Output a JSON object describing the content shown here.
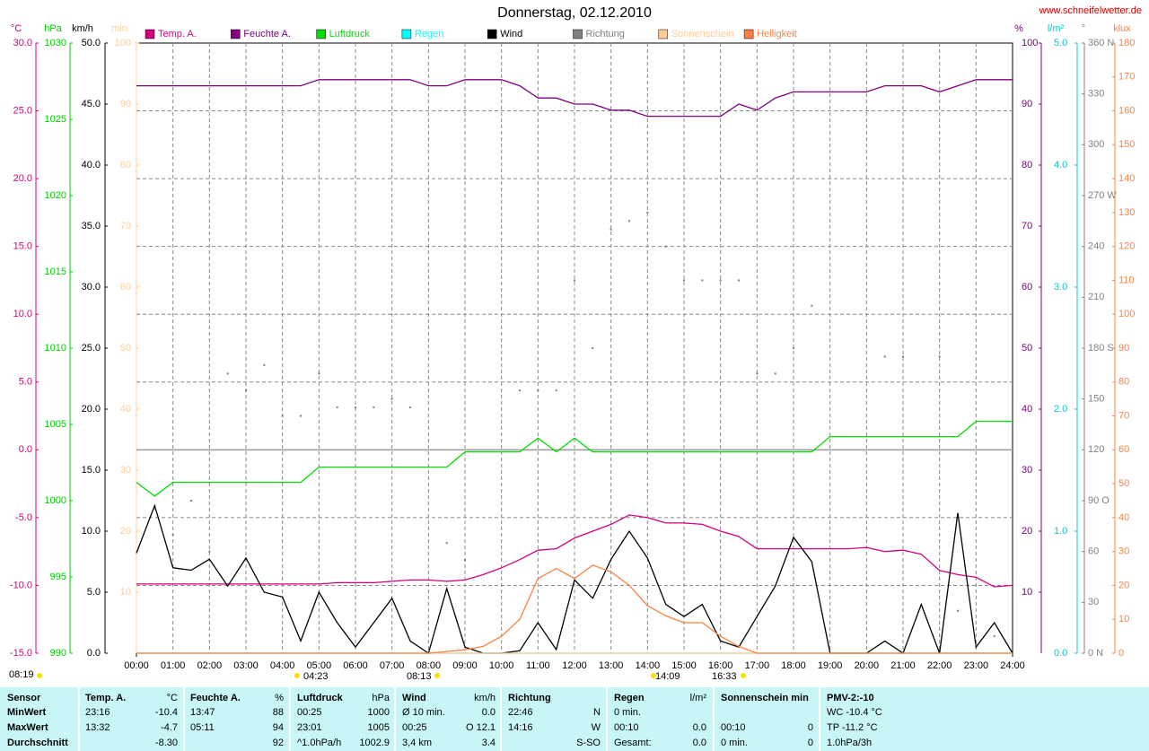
{
  "chart_data": {
    "type": "line",
    "title": "Donnerstag, 02.12.2010",
    "source": "www.schneifelwetter.de",
    "x": [
      0,
      0.5,
      1,
      1.5,
      2,
      2.5,
      3,
      3.5,
      4,
      4.5,
      5,
      5.5,
      6,
      6.5,
      7,
      7.5,
      8,
      8.5,
      9,
      9.5,
      10,
      10.5,
      11,
      11.5,
      12,
      12.5,
      13,
      13.5,
      14,
      14.5,
      15,
      15.5,
      16,
      16.5,
      17,
      17.5,
      18,
      18.5,
      19,
      19.5,
      20,
      20.5,
      21,
      21.5,
      22,
      22.5,
      23,
      23.5,
      24
    ],
    "xlim": [
      0,
      24
    ],
    "xticks": [
      {
        "value": 0,
        "label": "00:00"
      },
      {
        "value": 1,
        "label": "01:00"
      },
      {
        "value": 2,
        "label": "02:00"
      },
      {
        "value": 3,
        "label": "03:00"
      },
      {
        "value": 4,
        "label": "04:00"
      },
      {
        "value": 5,
        "label": "05:00"
      },
      {
        "value": 6,
        "label": "06:00"
      },
      {
        "value": 7,
        "label": "07:00"
      },
      {
        "value": 8,
        "label": "08:00"
      },
      {
        "value": 9,
        "label": "09:00"
      },
      {
        "value": 10,
        "label": "10:00"
      },
      {
        "value": 11,
        "label": "11:00"
      },
      {
        "value": 12,
        "label": "12:00"
      },
      {
        "value": 13,
        "label": "13:00"
      },
      {
        "value": 14,
        "label": "14:00"
      },
      {
        "value": 15,
        "label": "15:00"
      },
      {
        "value": 16,
        "label": "16:00"
      },
      {
        "value": 17,
        "label": "17:00"
      },
      {
        "value": 18,
        "label": "18:00"
      },
      {
        "value": 19,
        "label": "19:00"
      },
      {
        "value": 20,
        "label": "20:00"
      },
      {
        "value": 21,
        "label": "21:00"
      },
      {
        "value": 22,
        "label": "22:00"
      },
      {
        "value": 23,
        "label": "23:00"
      },
      {
        "value": 24,
        "label": "24:00"
      }
    ],
    "grid": true,
    "axes": [
      {
        "title": "°C",
        "color": "#d4007f",
        "ylim": [
          -15,
          30
        ],
        "yticks": [
          {
            "value": -15,
            "label": "-15.0"
          },
          {
            "value": -10,
            "label": "-10.0"
          },
          {
            "value": -5,
            "label": "-5.0"
          },
          {
            "value": 0,
            "label": "0.0"
          },
          {
            "value": 5,
            "label": "5.0"
          },
          {
            "value": 10,
            "label": "10.0"
          },
          {
            "value": 15,
            "label": "15.0"
          },
          {
            "value": 20,
            "label": "20.0"
          },
          {
            "value": 25,
            "label": "25.0"
          },
          {
            "value": 30,
            "label": "30.0"
          }
        ]
      },
      {
        "title": "hPa",
        "color": "#00cc00",
        "ylim": [
          990,
          1030
        ],
        "yticks": [
          990,
          995,
          1000,
          1005,
          1010,
          1015,
          1020,
          1025,
          1030
        ]
      },
      {
        "title": "km/h",
        "color": "#000000",
        "ylim": [
          0,
          50
        ],
        "yticks": [
          {
            "value": 0,
            "label": "0.0"
          },
          {
            "value": 5,
            "label": "5.0"
          },
          {
            "value": 10,
            "label": "10.0"
          },
          {
            "value": 15,
            "label": "15.0"
          },
          {
            "value": 20,
            "label": "20.0"
          },
          {
            "value": 25,
            "label": "25.0"
          },
          {
            "value": 30,
            "label": "30.0"
          },
          {
            "value": 35,
            "label": "35.0"
          },
          {
            "value": 40,
            "label": "40.0"
          },
          {
            "value": 45,
            "label": "45.0"
          },
          {
            "value": 50,
            "label": "50.0"
          }
        ]
      },
      {
        "title": "min",
        "color": "#ffcc99",
        "ylim": [
          0,
          100
        ],
        "yticks": [
          10,
          20,
          30,
          40,
          50,
          60,
          70,
          80,
          90,
          100
        ]
      },
      {
        "title": "%",
        "color": "#800080",
        "ylim": [
          0,
          100
        ],
        "yticks": [
          10,
          20,
          30,
          40,
          50,
          60,
          70,
          80,
          90,
          100
        ]
      },
      {
        "title": "l/m²",
        "color": "#00cccc",
        "ylim": [
          0,
          5
        ],
        "yticks": [
          {
            "value": 0,
            "label": "0.0"
          },
          {
            "value": 1,
            "label": "1.0"
          },
          {
            "value": 2,
            "label": "2.0"
          },
          {
            "value": 3,
            "label": "3.0"
          },
          {
            "value": 4,
            "label": "4.0"
          },
          {
            "value": 5,
            "label": "5.0"
          }
        ]
      },
      {
        "title": "°",
        "color": "#808080",
        "ylim": [
          0,
          360
        ],
        "yticks": [
          {
            "value": 0,
            "label": "0 N"
          },
          30,
          60,
          {
            "value": 90,
            "label": "90 O"
          },
          120,
          150,
          {
            "value": 180,
            "label": "180 S"
          },
          210,
          240,
          {
            "value": 270,
            "label": "270 W"
          },
          300,
          330,
          {
            "value": 360,
            "label": "360 N"
          }
        ]
      },
      {
        "title": "klux",
        "color": "#ff8040",
        "ylim": [
          0,
          180
        ],
        "yticks": [
          0,
          10,
          20,
          30,
          40,
          50,
          60,
          70,
          80,
          90,
          100,
          110,
          120,
          130,
          140,
          150,
          160,
          170,
          180
        ]
      }
    ],
    "series": [
      {
        "name": "Temp. A.",
        "color": "#d4007f",
        "axis": 0,
        "values": [
          -9.9,
          -9.9,
          -9.9,
          -9.9,
          -9.9,
          -9.9,
          -9.9,
          -9.9,
          -9.9,
          -9.9,
          -9.9,
          -9.8,
          -9.8,
          -9.8,
          -9.7,
          -9.6,
          -9.6,
          -9.7,
          -9.6,
          -9.2,
          -8.7,
          -8.1,
          -7.4,
          -7.3,
          -6.5,
          -6.0,
          -5.5,
          -4.8,
          -5.0,
          -5.4,
          -5.4,
          -5.5,
          -6.0,
          -6.4,
          -7.3,
          -7.3,
          -7.3,
          -7.3,
          -7.3,
          -7.3,
          -7.2,
          -7.5,
          -7.4,
          -7.7,
          -8.9,
          -9.2,
          -9.4,
          -10.1,
          -10.0
        ]
      },
      {
        "name": "Feuchte A.",
        "color": "#800080",
        "axis": 4,
        "values": [
          93,
          93,
          93,
          93,
          93,
          93,
          93,
          93,
          93,
          93,
          94,
          94,
          94,
          94,
          94,
          94,
          93,
          93,
          94,
          94,
          94,
          93,
          91,
          91,
          90,
          90,
          89,
          89,
          88,
          88,
          88,
          88,
          88,
          90,
          89,
          91,
          92,
          92,
          92,
          92,
          92,
          93,
          93,
          93,
          92,
          93,
          94,
          94,
          94
        ]
      },
      {
        "name": "Luftdruck",
        "color": "#00dd00",
        "axis": 1,
        "values": [
          1001.2,
          1000.3,
          1001.2,
          1001.2,
          1001.2,
          1001.2,
          1001.2,
          1001.2,
          1001.2,
          1001.2,
          1002.2,
          1002.2,
          1002.2,
          1002.2,
          1002.2,
          1002.2,
          1002.2,
          1002.2,
          1003.2,
          1003.2,
          1003.2,
          1003.2,
          1004.1,
          1003.2,
          1004.1,
          1003.2,
          1003.2,
          1003.2,
          1003.2,
          1003.2,
          1003.2,
          1003.2,
          1003.2,
          1003.2,
          1003.2,
          1003.2,
          1003.2,
          1003.2,
          1004.2,
          1004.2,
          1004.2,
          1004.2,
          1004.2,
          1004.2,
          1004.2,
          1004.2,
          1005.2,
          1005.2,
          1005.2
        ]
      },
      {
        "name": "Regen",
        "color": "#00ffff",
        "axis": 5,
        "values": [
          0,
          0,
          0,
          0,
          0,
          0,
          0,
          0,
          0,
          0,
          0,
          0,
          0,
          0,
          0,
          0,
          0,
          0,
          0,
          0,
          0,
          0,
          0,
          0,
          0,
          0,
          0,
          0,
          0,
          0,
          0,
          0,
          0,
          0,
          0,
          0,
          0,
          0,
          0,
          0,
          0,
          0,
          0,
          0,
          0,
          0,
          0,
          0,
          0
        ]
      },
      {
        "name": "Wind",
        "color": "#000000",
        "axis": 2,
        "values": [
          8.2,
          12.1,
          7.0,
          6.8,
          7.7,
          5.5,
          7.8,
          5.0,
          4.6,
          1.0,
          5.0,
          2.5,
          0.5,
          2.5,
          4.5,
          1.0,
          0.0,
          5.3,
          0.5,
          0.0,
          0.0,
          0.2,
          2.5,
          0.3,
          6.0,
          4.5,
          7.7,
          10.0,
          7.8,
          4.0,
          3.0,
          4.0,
          1.0,
          0.5,
          3.0,
          5.5,
          9.5,
          7.5,
          0.0,
          0.0,
          0.0,
          1.0,
          0.0,
          4.0,
          0.0,
          11.5,
          0.5,
          2.5,
          0.0
        ]
      },
      {
        "name": "Richtung",
        "color": "#808080",
        "axis": 6,
        "marker": "dot",
        "values": [
          null,
          85,
          70,
          90,
          60,
          165,
          155,
          170,
          140,
          140,
          165,
          145,
          145,
          145,
          150,
          145,
          null,
          65,
          55,
          null,
          null,
          155,
          155,
          155,
          220,
          180,
          250,
          255,
          260,
          240,
          220,
          220,
          220,
          220,
          165,
          165,
          180,
          205,
          null,
          null,
          null,
          175,
          175,
          null,
          175,
          25,
          5,
          10,
          null
        ]
      },
      {
        "name": "Sonnenschein",
        "color": "#ffcc99",
        "axis": 3,
        "values": [
          0,
          0,
          0,
          0,
          0,
          0,
          0,
          0,
          0,
          0,
          0,
          0,
          0,
          0,
          0,
          0,
          0,
          0,
          0,
          0,
          0,
          0,
          0,
          0,
          0,
          0,
          0,
          0,
          0,
          0,
          0,
          0,
          0,
          0,
          0,
          0,
          0,
          0,
          0,
          0,
          0,
          0,
          0,
          0,
          0,
          0,
          0,
          0,
          0
        ]
      },
      {
        "name": "Helligkeit",
        "color": "#ff8040",
        "axis": 7,
        "values": [
          0,
          0,
          0,
          0,
          0,
          0,
          0,
          0,
          0,
          0,
          0,
          0,
          0,
          0,
          0,
          0,
          0,
          0.5,
          1,
          2,
          5,
          10,
          22,
          25,
          22,
          26,
          24,
          20,
          14,
          11,
          9,
          9,
          5,
          2,
          0,
          0,
          0,
          0,
          0,
          0,
          0,
          0,
          0,
          0,
          0,
          0,
          0,
          0,
          0
        ]
      }
    ],
    "sun_labels": [
      "08:19",
      "04:23",
      "08:13",
      "14:09",
      "16:33"
    ]
  },
  "table": {
    "header": [
      "Sensor",
      "Temp. A.",
      "°C",
      "Feuchte A.",
      "%",
      "Luftdruck",
      "hPa",
      "Wind",
      "km/h",
      "Richtung",
      null,
      "Regen",
      "l/m²",
      "Sonnenschein min",
      null,
      "PMV-2:-10"
    ],
    "rows": [
      [
        "MinWert",
        "23:16",
        "-10.4",
        "13:47",
        "88",
        "00:25",
        "1000",
        "Ø 10 min.",
        "0.0",
        "22:46",
        "N",
        "0 min.",
        null,
        null,
        null,
        "WC -10.4 °C"
      ],
      [
        "MaxWert",
        "13:32",
        "-4.7",
        "05:11",
        "94",
        "23:01",
        "1005",
        "00:25",
        "O 12.1",
        "14:16",
        "W",
        "00:10",
        "0.0",
        "00:10",
        "0",
        "TP -11.2 °C"
      ],
      [
        "Durchschnitt",
        null,
        "-8.30",
        null,
        "92",
        "^1.0hPa/h",
        "1002.9",
        "3,4 km",
        "3.4",
        null,
        "S-SO",
        "Gesamt:",
        "0.0",
        "0 min.",
        "0",
        "1.0hPa/3h"
      ]
    ]
  }
}
